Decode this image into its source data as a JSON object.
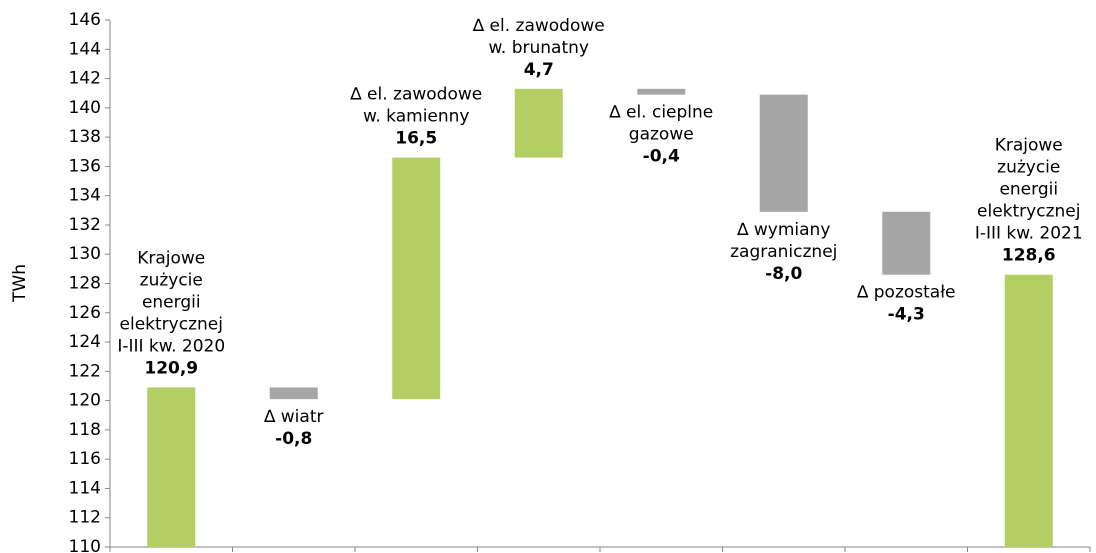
{
  "chart_data": {
    "type": "waterfall",
    "y_label": "TWh",
    "categories": [
      [
        "Krajowe",
        "zużycie",
        "energii",
        "elektrycznej",
        "I-III kw. 2020"
      ],
      [
        "∆ wiatr"
      ],
      [
        "∆ el. zawodowe",
        "w. kamienny"
      ],
      [
        "∆ el. zawodowe",
        "w. brunatny"
      ],
      [
        "∆ el. cieplne",
        "gazowe"
      ],
      [
        "∆ wymiany",
        "zagranicznej"
      ],
      [
        "∆ pozostałe"
      ],
      [
        "Krajowe",
        "zużycie",
        "energii",
        "elektrycznej",
        "I-III kw. 2021"
      ]
    ],
    "values": [
      120.9,
      -0.8,
      16.5,
      4.7,
      -0.4,
      -8.0,
      -4.3,
      128.6
    ],
    "value_labels": [
      "120,9",
      "-0,8",
      "16,5",
      "4,7",
      "-0,4",
      "-8,0",
      "-4,3",
      "128,6"
    ],
    "color": "#b3cf63",
    "negative_color": "#a6a6a6",
    "ylim": [
      110,
      146
    ],
    "yticks": [
      110,
      112,
      114,
      116,
      118,
      120,
      122,
      124,
      126,
      128,
      130,
      132,
      134,
      136,
      138,
      140,
      142,
      144,
      146
    ],
    "grid": false
  }
}
